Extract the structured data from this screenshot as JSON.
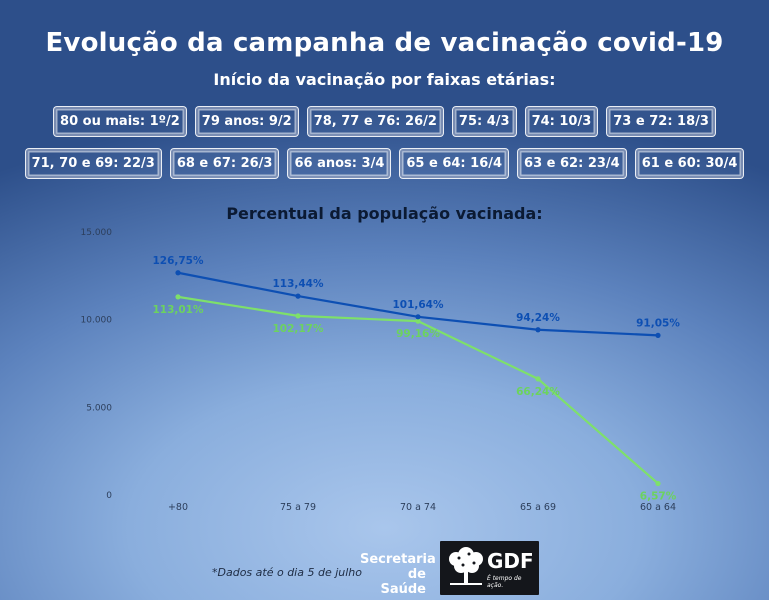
{
  "header": {
    "title": "Evolução da campanha de vacinação covid-19",
    "subtitle": "Início da vacinação por faixas etárias:"
  },
  "schedule_row1": [
    "80 ou mais: 1º/2",
    "79 anos: 9/2",
    "78, 77 e 76: 26/2",
    "75: 4/3",
    "74: 10/3",
    "73 e 72: 18/3"
  ],
  "schedule_row2": [
    "71, 70 e 69: 22/3",
    "68 e 67: 26/3",
    "66 anos: 3/4",
    "65 e 64: 16/4",
    "63 e 62: 23/4",
    "61 e 60: 30/4"
  ],
  "chart_data": {
    "type": "line",
    "title": "Percentual da população vacinada:",
    "categories": [
      "+80",
      "75 a 79",
      "70 a 74",
      "65 a 69",
      "60 a 64"
    ],
    "y_ticks": [
      "15.000",
      "10.000",
      "5.000",
      "0"
    ],
    "ylim": [
      0,
      15000
    ],
    "grid": false,
    "series": [
      {
        "color": "#0d4fb3",
        "values": [
          12675,
          11344,
          10164,
          9424,
          9105
        ],
        "labels": [
          "126,75%",
          "113,44%",
          "101,64%",
          "94,24%",
          "91,05%"
        ]
      },
      {
        "color": "#7ee06a",
        "values": [
          11301,
          10217,
          9916,
          6624,
          657
        ],
        "labels": [
          "113,01%",
          "102,17%",
          "99,16%",
          "66,24%",
          "6,57%"
        ]
      }
    ]
  },
  "footer": {
    "note": "*Dados até o dia 5 de julho",
    "secretaria_line1": "Secretaria",
    "secretaria_line2": "de Saúde",
    "gdf_logo_text": "GDF",
    "gdf_tagline": "É tempo de ação."
  }
}
